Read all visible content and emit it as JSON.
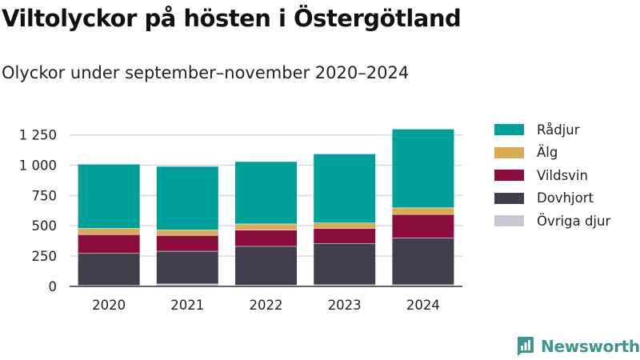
{
  "header": {
    "title": "Viltolyckor på hösten i Östergötland",
    "subtitle": "Olyckor under september–november 2020–2024"
  },
  "brand": {
    "name": "Newsworthy",
    "icon": "newsworthy-logo-icon",
    "color": "#3c9690"
  },
  "chart_data": {
    "type": "bar",
    "stacked": true,
    "categories": [
      "2020",
      "2021",
      "2022",
      "2023",
      "2024"
    ],
    "ylim": [
      0,
      1300
    ],
    "yticks": [
      0,
      250,
      500,
      750,
      1000,
      1250
    ],
    "ytick_labels": [
      "0",
      "250",
      "500",
      "750",
      "1 000",
      "1 250"
    ],
    "grid": true,
    "legend_position": "right",
    "title": "",
    "xlabel": "",
    "ylabel": "",
    "series": [
      {
        "name": "Övriga djur",
        "color": "#c8c6d2",
        "values": [
          10,
          22,
          12,
          15,
          15
        ]
      },
      {
        "name": "Dovhjort",
        "color": "#403f4e",
        "values": [
          265,
          270,
          320,
          340,
          385
        ]
      },
      {
        "name": "Vildsvin",
        "color": "#8a0c3c",
        "values": [
          155,
          130,
          135,
          125,
          195
        ]
      },
      {
        "name": "Älg",
        "color": "#d9ab57",
        "values": [
          50,
          45,
          50,
          45,
          55
        ]
      },
      {
        "name": "Rådjur",
        "color": "#00a09a",
        "values": [
          530,
          525,
          515,
          570,
          650
        ]
      }
    ]
  }
}
